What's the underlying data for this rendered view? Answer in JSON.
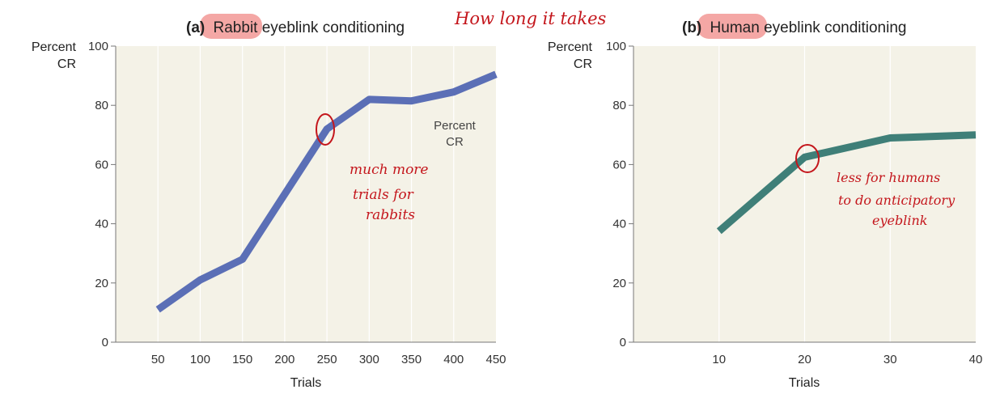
{
  "annotation_top": "How long it takes",
  "chart_data": [
    {
      "type": "line",
      "title_prefix": "(a)",
      "title_highlight": "Rabbit",
      "title_rest": " eyeblink conditioning",
      "ylabel_line1": "Percent",
      "ylabel_line2": "CR",
      "xlabel": "Trials",
      "xticks": [
        "50",
        "100",
        "150",
        "200",
        "250",
        "300",
        "350",
        "400",
        "450"
      ],
      "yticks": [
        "0",
        "20",
        "40",
        "60",
        "80",
        "100"
      ],
      "xlim": [
        0,
        450
      ],
      "ylim": [
        0,
        100
      ],
      "line_label_1": "Percent",
      "line_label_2": "CR",
      "line_color": "#5b6fb6",
      "series": [
        {
          "x": [
            50,
            100,
            150,
            200,
            250,
            300,
            350,
            400,
            450
          ],
          "values": [
            11,
            21,
            28,
            50,
            72,
            82,
            81.5,
            84.5,
            90.5
          ]
        }
      ],
      "grid": "vertical",
      "note_lines": [
        "much more",
        "trials for",
        "rabbits"
      ]
    },
    {
      "type": "line",
      "title_prefix": "(b)",
      "title_highlight": "Human",
      "title_rest": " eyeblink conditioning",
      "ylabel_line1": "Percent",
      "ylabel_line2": "CR",
      "xlabel": "Trials",
      "xticks": [
        "10",
        "20",
        "30",
        "40"
      ],
      "yticks": [
        "0",
        "20",
        "40",
        "60",
        "80",
        "100"
      ],
      "xlim": [
        0,
        40
      ],
      "ylim": [
        0,
        100
      ],
      "line_color": "#3f7f78",
      "series": [
        {
          "x": [
            10,
            20,
            30,
            40
          ],
          "values": [
            37.5,
            62.5,
            69,
            70
          ]
        }
      ],
      "grid": "vertical",
      "note_lines": [
        "less for humans",
        "to do anticipatory",
        "eyeblink"
      ]
    }
  ],
  "colors": {
    "plot_bg": "#f4f2e7",
    "highlight": "#f4a7a5",
    "grid": "#ffffff",
    "annotation": "#c4161c"
  }
}
